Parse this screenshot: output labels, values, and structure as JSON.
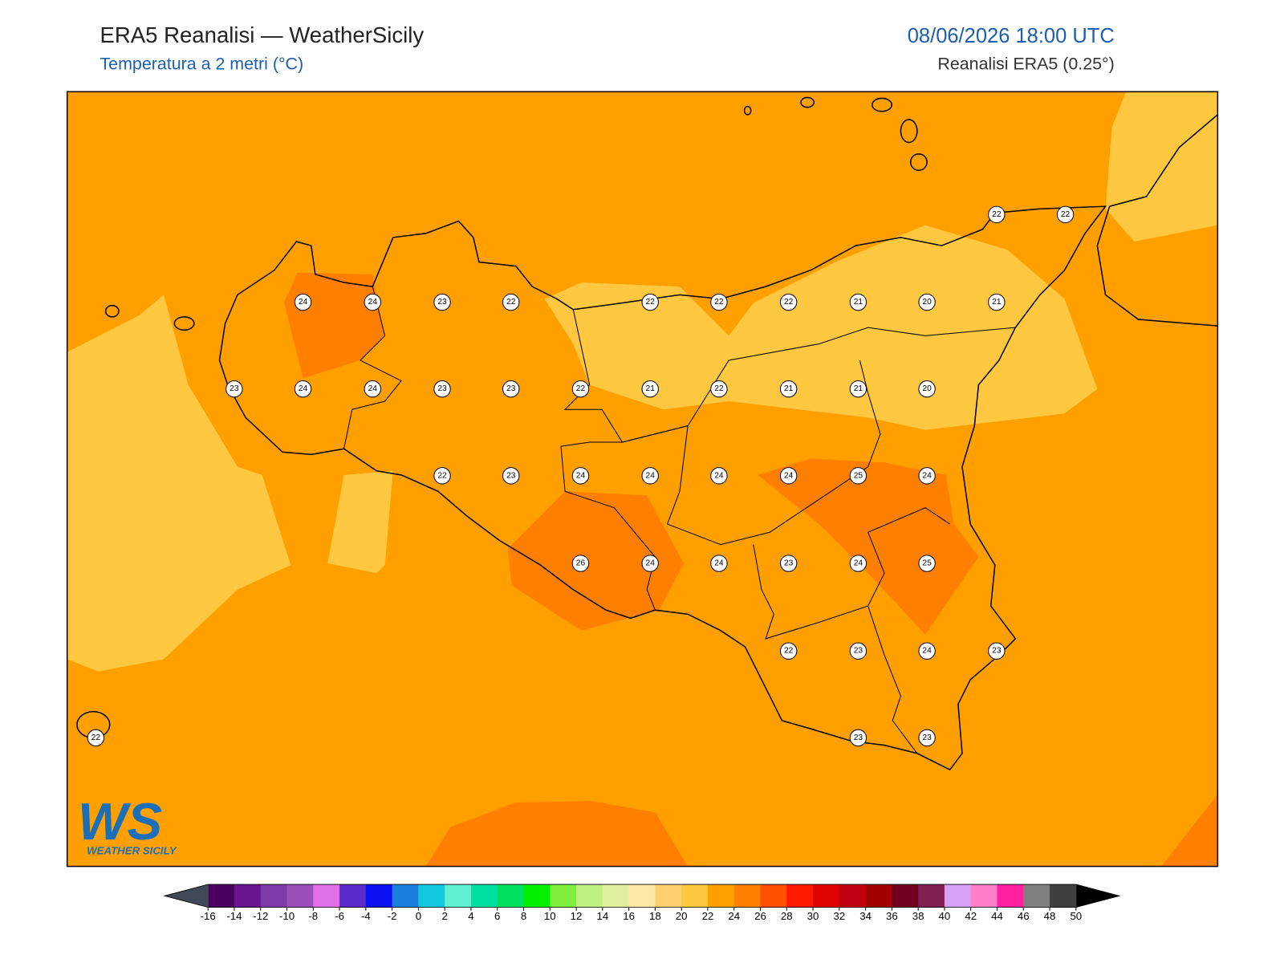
{
  "header": {
    "title": "ERA5 Reanalisi — WeatherSicily",
    "subtitle": "Temperatura a 2 metri (°C)",
    "date": "08/06/2026 18:00 UTC",
    "source": "Reanalisi ERA5 (0.25°)"
  },
  "stations": [
    22,
    22,
    24,
    24,
    23,
    22,
    22,
    22,
    22,
    21,
    20,
    21,
    23,
    24,
    24,
    23,
    23,
    22,
    21,
    22,
    21,
    21,
    20,
    22,
    23,
    24,
    24,
    24,
    24,
    25,
    24,
    26,
    24,
    24,
    23,
    24,
    25,
    22,
    23,
    24,
    23,
    22,
    23,
    23
  ],
  "colorbar": {
    "ticks": [
      -16,
      -14,
      -12,
      -10,
      -8,
      -6,
      -4,
      -2,
      0,
      2,
      4,
      6,
      8,
      10,
      12,
      14,
      16,
      18,
      20,
      22,
      24,
      26,
      28,
      30,
      32,
      34,
      36,
      38,
      40,
      42,
      44,
      46,
      48,
      50
    ],
    "colors": [
      "#4a0060",
      "#6a1590",
      "#7e3aa8",
      "#9b4fb8",
      "#e070e8",
      "#5a2bc8",
      "#0a10f0",
      "#1a80e0",
      "#10c8e0",
      "#60f0d0",
      "#00e0a0",
      "#00e060",
      "#00f000",
      "#80f040",
      "#c0f080",
      "#e0f0a0",
      "#ffe8a8",
      "#ffd070",
      "#ffc840",
      "#ffa000",
      "#ff8000",
      "#ff5000",
      "#ff1a00",
      "#e00000",
      "#c00010",
      "#a00000",
      "#700020",
      "#802050",
      "#d8a0f8",
      "#ff80c8",
      "#ff20a0",
      "#808080",
      "#404040"
    ],
    "under_color": "#404858",
    "over_color": "#000000"
  },
  "logo": {
    "mark": "WS",
    "text": "WEATHER SICILY"
  }
}
